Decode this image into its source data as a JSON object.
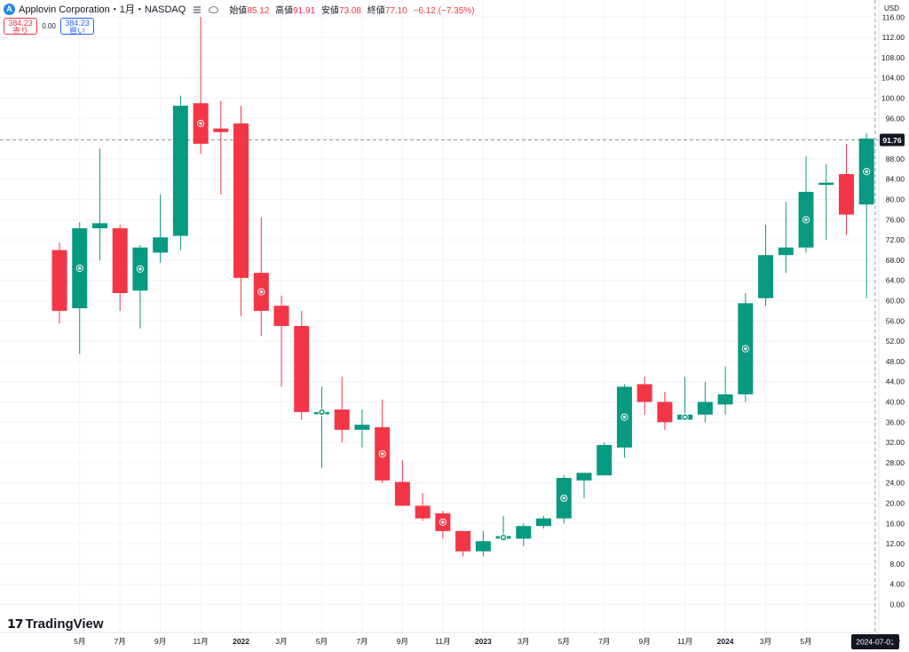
{
  "header": {
    "logo_letter": "A",
    "symbol": "Applovin Corporation・1月・NASDAQ",
    "open_label": "始値",
    "open": "85.12",
    "high_label": "高値",
    "high": "91.91",
    "low_label": "安値",
    "low": "73.08",
    "close_label": "終値",
    "close": "77.10",
    "change": "−6.12 (−7.35%)"
  },
  "trade": {
    "sell_price": "384.23",
    "sell_label": "売り",
    "spread": "0.00",
    "buy_price": "384.23",
    "buy_label": "買い"
  },
  "brand": "TradingView",
  "colors": {
    "up": "#089981",
    "down": "#f23645",
    "grid": "#f0f3fa",
    "crosshair": "#9598a1"
  },
  "chart_data": {
    "type": "candlestick",
    "currency": "USD",
    "y_ticks": [
      0,
      4,
      8,
      12,
      16,
      20,
      24,
      28,
      32,
      36,
      40,
      44,
      48,
      52,
      56,
      60,
      64,
      68,
      72,
      76,
      80,
      84,
      88,
      92,
      96,
      100,
      104,
      108,
      112,
      116
    ],
    "ylim": [
      -2,
      119.5
    ],
    "price_label": "91.76",
    "x_labels": [
      {
        "i": 1,
        "t": "5月"
      },
      {
        "i": 3,
        "t": "7月"
      },
      {
        "i": 5,
        "t": "9月"
      },
      {
        "i": 7,
        "t": "11月"
      },
      {
        "i": 9,
        "t": "2022"
      },
      {
        "i": 11,
        "t": "3月"
      },
      {
        "i": 13,
        "t": "5月"
      },
      {
        "i": 15,
        "t": "7月"
      },
      {
        "i": 17,
        "t": "9月"
      },
      {
        "i": 19,
        "t": "11月"
      },
      {
        "i": 21,
        "t": "2023"
      },
      {
        "i": 23,
        "t": "3月"
      },
      {
        "i": 25,
        "t": "5月"
      },
      {
        "i": 27,
        "t": "7月"
      },
      {
        "i": 29,
        "t": "9月"
      },
      {
        "i": 31,
        "t": "11月"
      },
      {
        "i": 33,
        "t": "2024"
      },
      {
        "i": 35,
        "t": "3月"
      },
      {
        "i": 37,
        "t": "5月"
      }
    ],
    "crosshair_date": "2024-07-01",
    "candles": [
      {
        "o": 70.0,
        "h": 71.5,
        "l": 55.5,
        "c": 58.0
      },
      {
        "o": 58.5,
        "h": 75.5,
        "l": 49.5,
        "c": 74.3,
        "m": 1
      },
      {
        "o": 74.3,
        "h": 90.0,
        "l": 68.0,
        "c": 75.3
      },
      {
        "o": 74.3,
        "h": 75.0,
        "l": 58.0,
        "c": 61.5
      },
      {
        "o": 62.0,
        "h": 71.0,
        "l": 54.5,
        "c": 70.5,
        "m": 1
      },
      {
        "o": 69.5,
        "h": 81.0,
        "l": 67.5,
        "c": 72.5
      },
      {
        "o": 72.8,
        "h": 100.5,
        "l": 70.0,
        "c": 98.5
      },
      {
        "o": 99.0,
        "h": 116.0,
        "l": 89.0,
        "c": 91.0,
        "m": 1
      },
      {
        "o": 94.0,
        "h": 99.5,
        "l": 81.0,
        "c": 93.3
      },
      {
        "o": 95.0,
        "h": 98.5,
        "l": 57.0,
        "c": 64.5
      },
      {
        "o": 65.5,
        "h": 76.5,
        "l": 53.0,
        "c": 58.0,
        "m": 1
      },
      {
        "o": 59.0,
        "h": 61.0,
        "l": 43.0,
        "c": 55.0
      },
      {
        "o": 55.0,
        "h": 58.0,
        "l": 36.5,
        "c": 38.0
      },
      {
        "o": 38.0,
        "h": 43.0,
        "l": 27.0,
        "c": 38.0,
        "m": 1
      },
      {
        "o": 38.5,
        "h": 45.0,
        "l": 32.0,
        "c": 34.5
      },
      {
        "o": 34.5,
        "h": 38.5,
        "l": 31.0,
        "c": 35.5
      },
      {
        "o": 35.0,
        "h": 40.5,
        "l": 24.0,
        "c": 24.5,
        "m": 1
      },
      {
        "o": 24.2,
        "h": 28.5,
        "l": 19.5,
        "c": 19.5
      },
      {
        "o": 19.5,
        "h": 22.0,
        "l": 16.5,
        "c": 17.0
      },
      {
        "o": 18.0,
        "h": 18.5,
        "l": 13.0,
        "c": 14.5,
        "m": 1
      },
      {
        "o": 14.5,
        "h": 14.5,
        "l": 9.5,
        "c": 10.5
      },
      {
        "o": 10.5,
        "h": 14.5,
        "l": 9.5,
        "c": 12.5
      },
      {
        "o": 13.0,
        "h": 17.5,
        "l": 12.5,
        "c": 13.5,
        "m": 1
      },
      {
        "o": 13.0,
        "h": 16.0,
        "l": 11.5,
        "c": 15.5
      },
      {
        "o": 15.5,
        "h": 17.5,
        "l": 15.0,
        "c": 17.0
      },
      {
        "o": 17.0,
        "h": 25.5,
        "l": 16.0,
        "c": 25.0,
        "m": 1
      },
      {
        "o": 24.5,
        "h": 26.0,
        "l": 21.0,
        "c": 26.0
      },
      {
        "o": 25.5,
        "h": 32.0,
        "l": 25.5,
        "c": 31.5
      },
      {
        "o": 31.0,
        "h": 43.5,
        "l": 29.0,
        "c": 43.0,
        "m": 1
      },
      {
        "o": 43.5,
        "h": 45.0,
        "l": 37.5,
        "c": 40.0
      },
      {
        "o": 40.0,
        "h": 42.0,
        "l": 34.5,
        "c": 36.0
      },
      {
        "o": 36.5,
        "h": 45.0,
        "l": 36.5,
        "c": 37.5,
        "m": 1
      },
      {
        "o": 37.5,
        "h": 44.0,
        "l": 36.0,
        "c": 40.0
      },
      {
        "o": 39.5,
        "h": 47.0,
        "l": 37.5,
        "c": 41.5
      },
      {
        "o": 41.5,
        "h": 61.5,
        "l": 40.0,
        "c": 59.5,
        "m": 1
      },
      {
        "o": 60.5,
        "h": 75.0,
        "l": 59.0,
        "c": 69.0
      },
      {
        "o": 69.0,
        "h": 79.5,
        "l": 65.5,
        "c": 70.5
      },
      {
        "o": 70.5,
        "h": 88.5,
        "l": 69.5,
        "c": 81.5,
        "m": 1
      },
      {
        "o": 83.0,
        "h": 87.0,
        "l": 72.0,
        "c": 83.3
      },
      {
        "o": 85.0,
        "h": 91.0,
        "l": 73.0,
        "c": 77.0
      },
      {
        "o": 79.0,
        "h": 93.0,
        "l": 60.5,
        "c": 92.0,
        "m": 1
      }
    ]
  }
}
